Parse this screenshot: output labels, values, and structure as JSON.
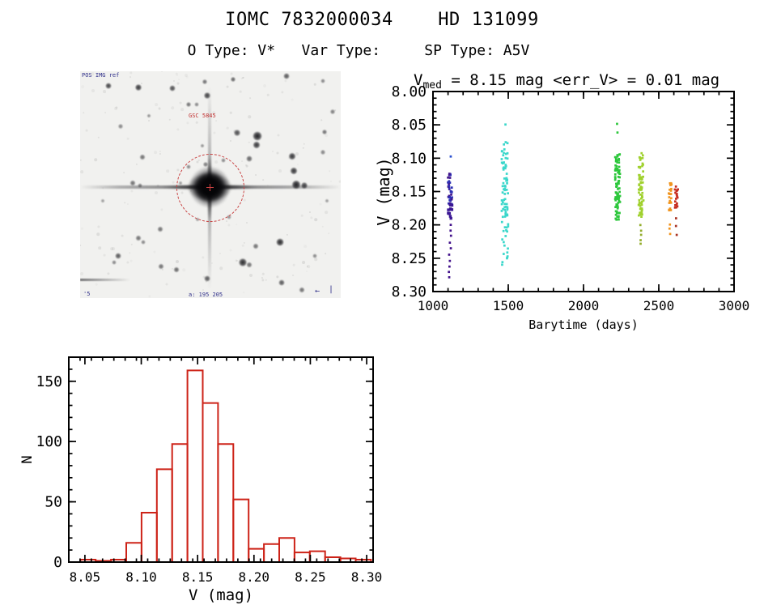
{
  "page": {
    "title": "IOMC 7832000034    HD 131099",
    "subtitle": "O Type: V*   Var Type:     SP Type: A5V"
  },
  "finder_chart": {
    "top_left_label": "POS IMG ref",
    "target_label": "GSC 5845",
    "bottom_label": "a: 195 205",
    "bottom_left_label": "'5",
    "compass_arrow": "←",
    "compass_bar": "|",
    "stars": [
      [
        35,
        18,
        11,
        0.8
      ],
      [
        72,
        20,
        12,
        0.85
      ],
      [
        114,
        21,
        11,
        0.75
      ],
      [
        154,
        13,
        9,
        0.6
      ],
      [
        157,
        30,
        12,
        0.8
      ],
      [
        189,
        10,
        9,
        0.65
      ],
      [
        255,
        6,
        11,
        0.7
      ],
      [
        300,
        12,
        8,
        0.5
      ],
      [
        134,
        41,
        9,
        0.6
      ],
      [
        144,
        41,
        8,
        0.5
      ],
      [
        85,
        55,
        7,
        0.45
      ],
      [
        312,
        50,
        9,
        0.55
      ],
      [
        50,
        68,
        9,
        0.5
      ],
      [
        194,
        76,
        12,
        0.75
      ],
      [
        219,
        80,
        17,
        0.95
      ],
      [
        218,
        91,
        13,
        0.85
      ],
      [
        302,
        75,
        9,
        0.6
      ],
      [
        77,
        106,
        10,
        0.6
      ],
      [
        209,
        108,
        11,
        0.65
      ],
      [
        262,
        105,
        13,
        0.85
      ],
      [
        264,
        123,
        13,
        0.85
      ],
      [
        300,
        100,
        9,
        0.5
      ],
      [
        28,
        160,
        7,
        0.4
      ],
      [
        305,
        160,
        7,
        0.4
      ],
      [
        65,
        138,
        10,
        0.6
      ],
      [
        74,
        141,
        8,
        0.5
      ],
      [
        267,
        140,
        16,
        0.95
      ],
      [
        277,
        141,
        12,
        0.8
      ],
      [
        124,
        138,
        7,
        0.4
      ],
      [
        134,
        118,
        8,
        0.5
      ],
      [
        155,
        115,
        9,
        0.55
      ],
      [
        177,
        110,
        8,
        0.5
      ],
      [
        151,
        92,
        7,
        0.45
      ],
      [
        99,
        195,
        10,
        0.6
      ],
      [
        184,
        180,
        8,
        0.45
      ],
      [
        145,
        183,
        7,
        0.4
      ],
      [
        72,
        206,
        10,
        0.6
      ],
      [
        78,
        211,
        8,
        0.5
      ],
      [
        47,
        228,
        11,
        0.7
      ],
      [
        42,
        236,
        8,
        0.5
      ],
      [
        100,
        241,
        10,
        0.6
      ],
      [
        119,
        245,
        10,
        0.65
      ],
      [
        157,
        256,
        11,
        0.7
      ],
      [
        217,
        216,
        10,
        0.6
      ],
      [
        201,
        236,
        15,
        0.9
      ],
      [
        209,
        239,
        10,
        0.6
      ],
      [
        247,
        211,
        14,
        0.9
      ],
      [
        249,
        261,
        11,
        0.7
      ],
      [
        274,
        270,
        10,
        0.6
      ],
      [
        290,
        228,
        8,
        0.5
      ]
    ]
  },
  "chart_data": [
    {
      "type": "scatter",
      "title": {
        "main": "V",
        "sub": "med",
        "rest": " = 8.15 mag <err_V> = 0.01 mag"
      },
      "xlabel": "Barytime (days)",
      "ylabel": "V (mag)",
      "xlim": [
        1000,
        3000
      ],
      "ylim": [
        8.0,
        8.3
      ],
      "xticks": [
        1000,
        1500,
        2000,
        2500,
        3000
      ],
      "xtick_labels": [
        "1000",
        "1500",
        "2000",
        "2500",
        "3000"
      ],
      "xminor": 100,
      "yticks": [
        8.0,
        8.05,
        8.1,
        8.15,
        8.2,
        8.25,
        8.3
      ],
      "ytick_labels": [
        "8.00",
        "8.05",
        "8.10",
        "8.15",
        "8.20",
        "8.25",
        "8.30"
      ],
      "yminor": 0.01,
      "clusters": [
        {
          "x": 1113,
          "jx": 5,
          "color": "#2c2fb4",
          "color2": "#41158c",
          "segments": [
            {
              "v1": 8.096,
              "v2": 8.099,
              "n": 1,
              "color": "#2a4fd0"
            },
            {
              "v1": 8.122,
              "v2": 8.17,
              "n": 36,
              "mix": true
            },
            {
              "v1": 8.17,
              "v2": 8.191,
              "n": 12,
              "color": "#3a1694",
              "size": 3.4
            },
            {
              "v1": 8.197,
              "v2": 8.278,
              "n": 10,
              "color": "#41108a",
              "sparse": true
            }
          ]
        },
        {
          "x": 1478,
          "jx": 8,
          "color": "#3bd7cb",
          "segments": [
            {
              "v1": 8.048,
              "v2": 8.051,
              "n": 1
            },
            {
              "v1": 8.073,
              "v2": 8.083,
              "n": 3
            },
            {
              "v1": 8.085,
              "v2": 8.192,
              "n": 62
            },
            {
              "v1": 8.193,
              "v2": 8.262,
              "n": 20
            }
          ]
        },
        {
          "x": 2226,
          "jx": 6,
          "color": "#2dc73c",
          "segments": [
            {
              "v1": 8.047,
              "v2": 8.05,
              "n": 1
            },
            {
              "v1": 8.06,
              "v2": 8.063,
              "n": 1
            },
            {
              "v1": 8.094,
              "v2": 8.193,
              "n": 95
            }
          ]
        },
        {
          "x": 2382,
          "jx": 6,
          "color": "#a0d12e",
          "segments": [
            {
              "v1": 8.092,
              "v2": 8.19,
              "n": 68
            },
            {
              "v1": 8.2,
              "v2": 8.228,
              "n": 5,
              "sparse": true,
              "color": "#93ad2b"
            }
          ]
        },
        {
          "x": 2575,
          "jx": 4,
          "color": "#f0941f",
          "segments": [
            {
              "v1": 8.137,
              "v2": 8.179,
              "n": 24
            },
            {
              "v1": 8.198,
              "v2": 8.212,
              "n": 3,
              "sparse": true
            }
          ]
        },
        {
          "x": 2618,
          "jx": 4,
          "color": "#c62c20",
          "segments": [
            {
              "v1": 8.141,
              "v2": 8.144,
              "n": 1
            },
            {
              "v1": 8.146,
              "v2": 8.179,
              "n": 18
            },
            {
              "v1": 8.19,
              "v2": 8.213,
              "n": 3,
              "sparse": true,
              "color": "#a83324"
            }
          ]
        }
      ]
    },
    {
      "type": "histogram",
      "xlabel": "V (mag)",
      "ylabel": "N",
      "xlim": [
        8.0357,
        8.3057
      ],
      "ylim": [
        0,
        170
      ],
      "xticks": [
        8.05,
        8.1,
        8.15,
        8.2,
        8.25,
        8.3
      ],
      "xtick_labels": [
        "8.05",
        "8.10",
        "8.15",
        "8.20",
        "8.25",
        "8.30"
      ],
      "xminor": 0.01,
      "yticks": [
        0,
        50,
        100,
        150
      ],
      "ytick_labels": [
        "0",
        "50",
        "100",
        "150"
      ],
      "yminor": 10,
      "bar_color": "#cd2318",
      "bin_start": 8.046,
      "bin_width": 0.01357,
      "counts": [
        2,
        1,
        2,
        16,
        41,
        77,
        98,
        159,
        132,
        98,
        52,
        11,
        15,
        20,
        8,
        9,
        4,
        3,
        2
      ]
    }
  ]
}
